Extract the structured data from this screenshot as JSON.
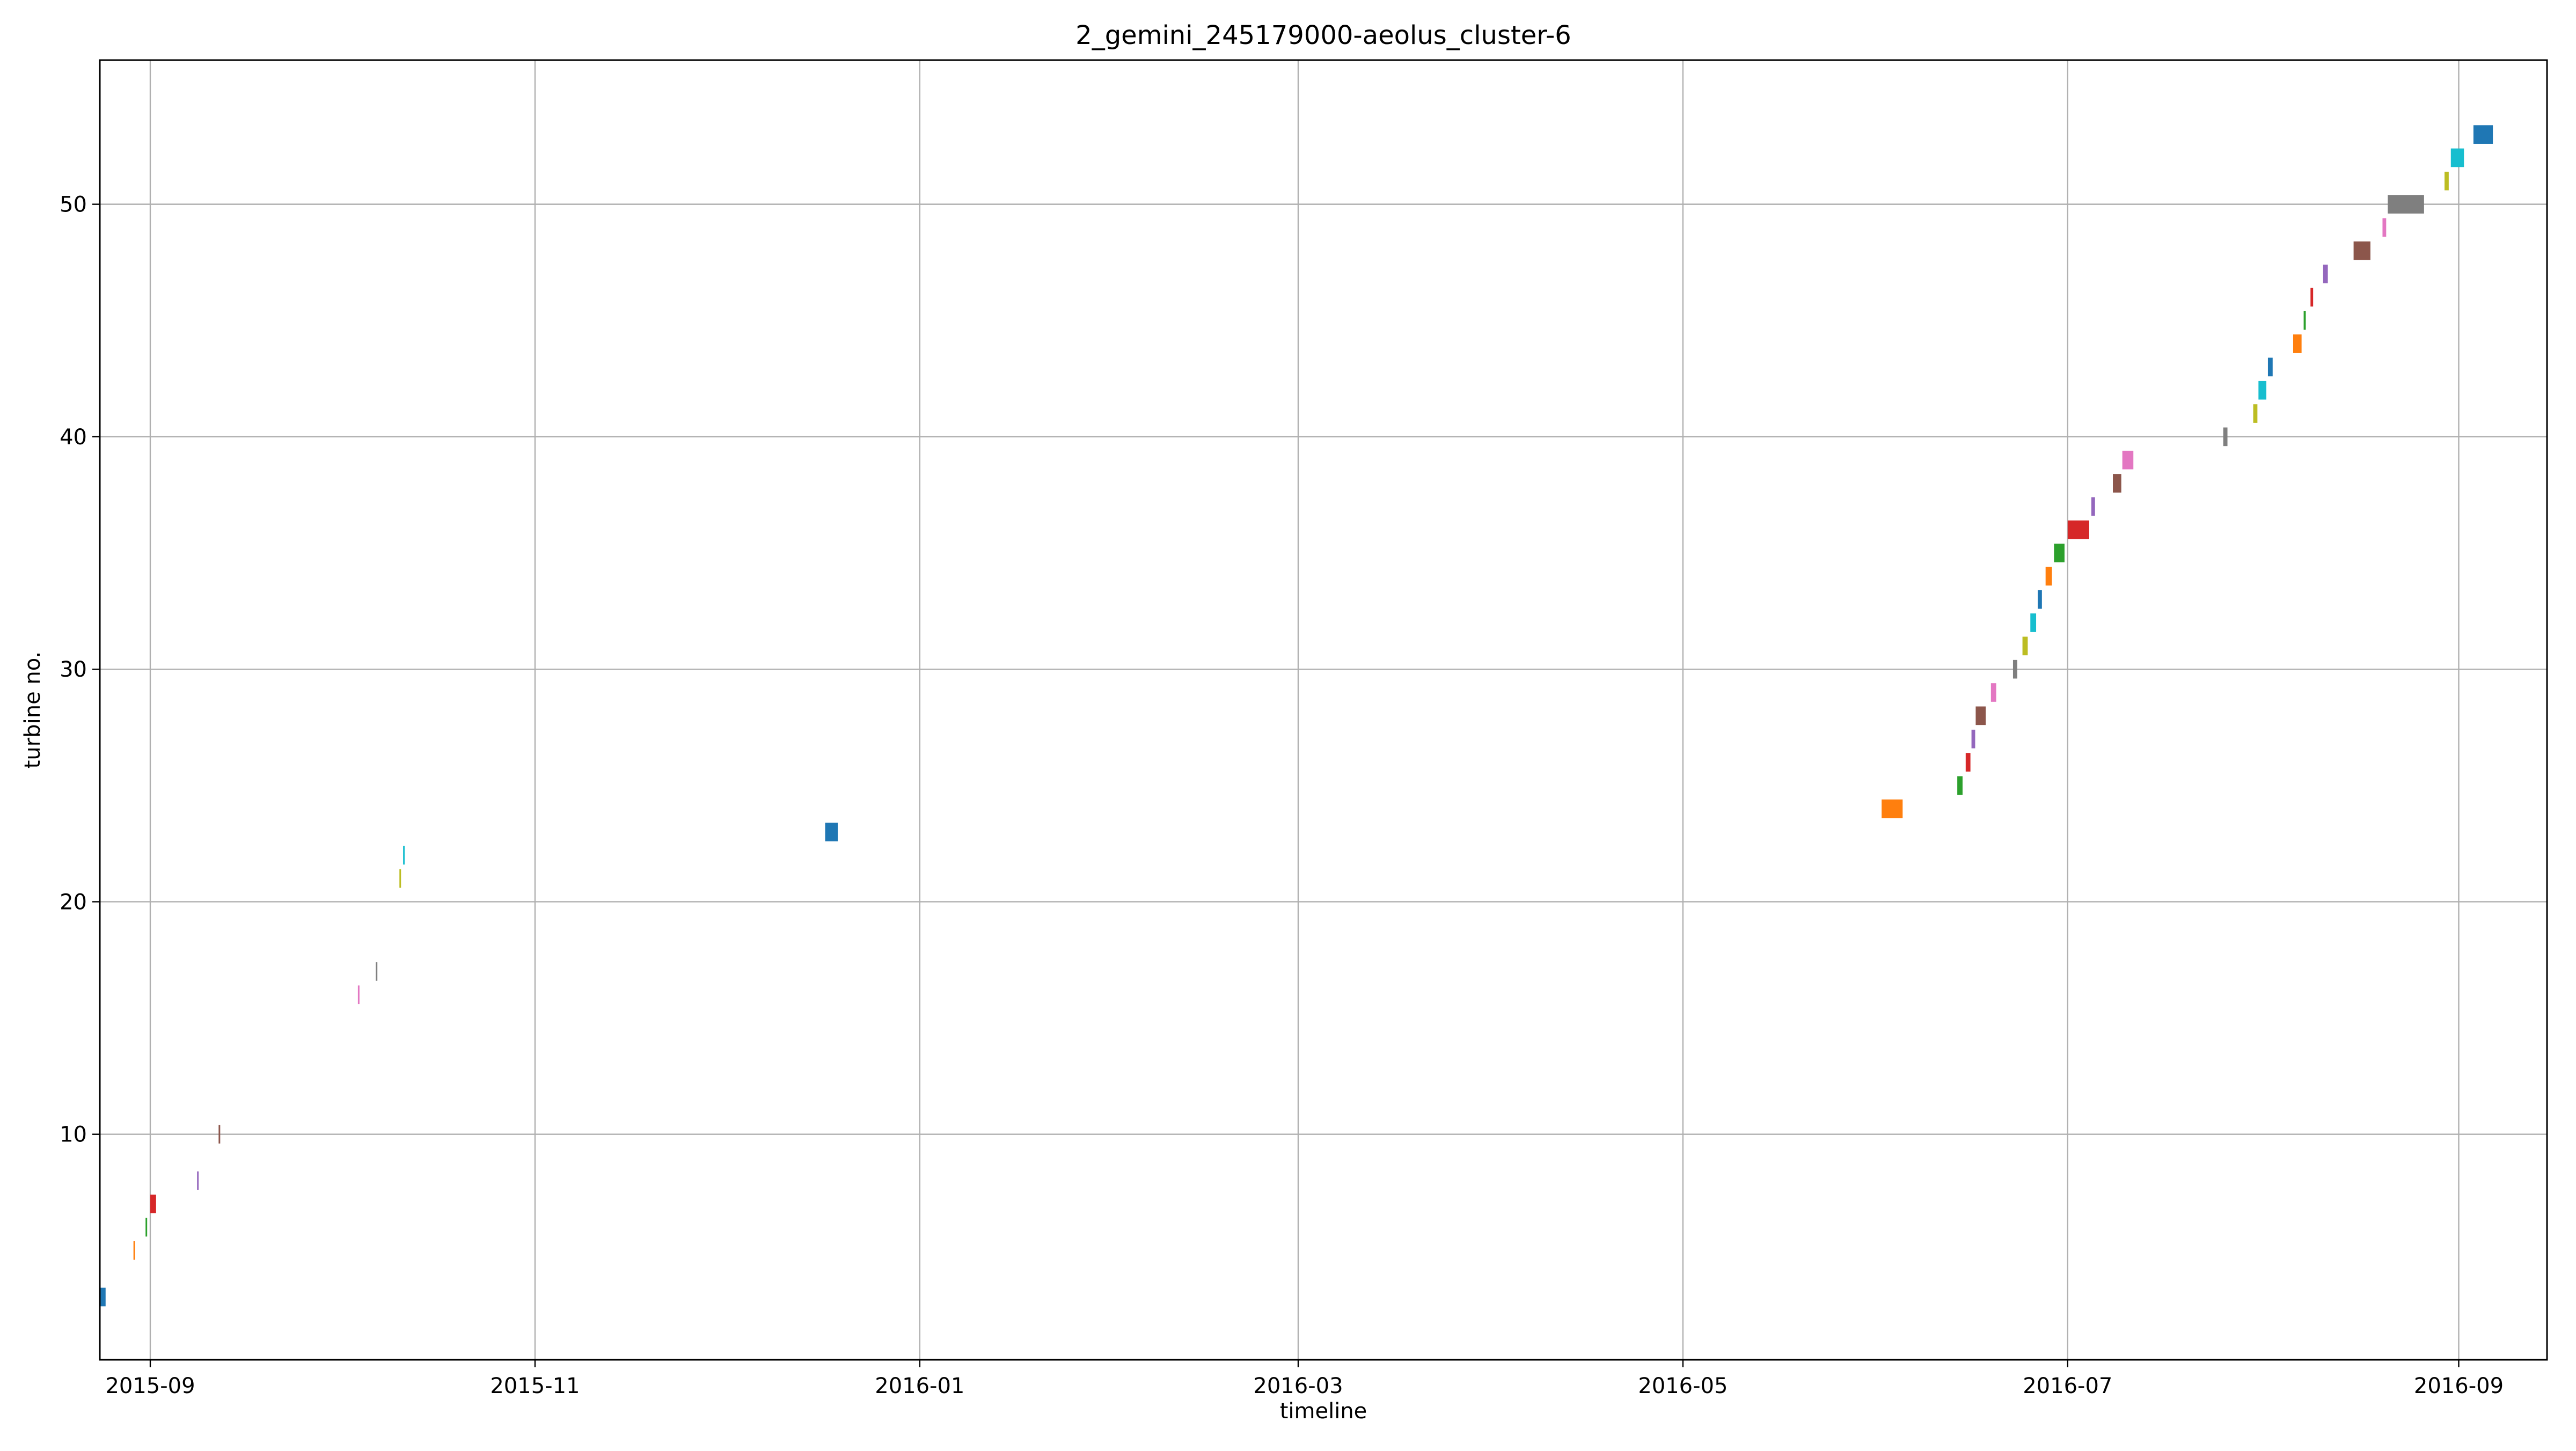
{
  "chart_data": {
    "type": "gantt",
    "title": "2_gemini_245179000-aeolus_cluster-6",
    "xlabel": "timeline",
    "ylabel": "turbine no.",
    "x_axis": {
      "scale": "time",
      "range": [
        "2015-08-24",
        "2016-09-15"
      ],
      "ticks": [
        "2015-09-01",
        "2015-11-01",
        "2016-01-01",
        "2016-03-01",
        "2016-05-01",
        "2016-07-01",
        "2016-09-01"
      ],
      "tick_labels": [
        "2015-09",
        "2015-11",
        "2016-01",
        "2016-03",
        "2016-05",
        "2016-07",
        "2016-09"
      ]
    },
    "y_axis": {
      "range": [
        0.3,
        56.2
      ],
      "ticks": [
        10,
        20,
        30,
        40,
        50
      ],
      "tick_labels": [
        "10",
        "20",
        "30",
        "40",
        "50"
      ]
    },
    "grid": true,
    "legend": "none",
    "colors": {
      "blue": "#1f77b4",
      "orange": "#ff7f0e",
      "green": "#2ca02c",
      "red": "#d62728",
      "purple": "#9467bd",
      "brown": "#8c564b",
      "pink": "#e377c2",
      "gray": "#7f7f7f",
      "olive": "#bcbd22",
      "cyan": "#17becf"
    },
    "bars": [
      {
        "turbine": 3,
        "start": "2015-08-24T00:00",
        "end": "2015-08-24T22:00",
        "color": "blue"
      },
      {
        "turbine": 5,
        "start": "2015-08-29T08:00",
        "end": "2015-08-29T14:00",
        "color": "orange"
      },
      {
        "turbine": 6,
        "start": "2015-08-31T06:00",
        "end": "2015-08-31T12:00",
        "color": "green"
      },
      {
        "turbine": 7,
        "start": "2015-09-01T00:00",
        "end": "2015-09-01T22:00",
        "color": "red"
      },
      {
        "turbine": 8,
        "start": "2015-09-08T10:00",
        "end": "2015-09-08T16:00",
        "color": "purple"
      },
      {
        "turbine": 10,
        "start": "2015-09-11T20:00",
        "end": "2015-09-12T02:00",
        "color": "brown"
      },
      {
        "turbine": 16,
        "start": "2015-10-03T22:00",
        "end": "2015-10-04T04:00",
        "color": "pink"
      },
      {
        "turbine": 17,
        "start": "2015-10-06T18:00",
        "end": "2015-10-07T00:00",
        "color": "gray"
      },
      {
        "turbine": 21,
        "start": "2015-10-10T12:00",
        "end": "2015-10-10T18:00",
        "color": "olive"
      },
      {
        "turbine": 22,
        "start": "2015-10-11T02:00",
        "end": "2015-10-11T08:00",
        "color": "cyan"
      },
      {
        "turbine": 23,
        "start": "2015-12-17T00:00",
        "end": "2015-12-19T00:00",
        "color": "blue"
      },
      {
        "turbine": 24,
        "start": "2016-06-01T12:00",
        "end": "2016-06-04T20:00",
        "color": "orange"
      },
      {
        "turbine": 25,
        "start": "2016-06-13T12:00",
        "end": "2016-06-14T08:00",
        "color": "green"
      },
      {
        "turbine": 26,
        "start": "2016-06-14T20:00",
        "end": "2016-06-15T14:00",
        "color": "red"
      },
      {
        "turbine": 27,
        "start": "2016-06-15T18:00",
        "end": "2016-06-16T08:00",
        "color": "purple"
      },
      {
        "turbine": 28,
        "start": "2016-06-16T10:00",
        "end": "2016-06-18T00:00",
        "color": "brown"
      },
      {
        "turbine": 29,
        "start": "2016-06-18T20:00",
        "end": "2016-06-19T16:00",
        "color": "pink"
      },
      {
        "turbine": 30,
        "start": "2016-06-22T08:00",
        "end": "2016-06-23T00:00",
        "color": "gray"
      },
      {
        "turbine": 31,
        "start": "2016-06-23T20:00",
        "end": "2016-06-24T16:00",
        "color": "olive"
      },
      {
        "turbine": 32,
        "start": "2016-06-25T02:00",
        "end": "2016-06-26T00:00",
        "color": "cyan"
      },
      {
        "turbine": 33,
        "start": "2016-06-26T06:00",
        "end": "2016-06-26T22:00",
        "color": "blue"
      },
      {
        "turbine": 34,
        "start": "2016-06-27T12:00",
        "end": "2016-06-28T12:00",
        "color": "orange"
      },
      {
        "turbine": 35,
        "start": "2016-06-28T20:00",
        "end": "2016-06-30T12:00",
        "color": "green"
      },
      {
        "turbine": 36,
        "start": "2016-07-01T00:00",
        "end": "2016-07-04T10:00",
        "color": "red"
      },
      {
        "turbine": 37,
        "start": "2016-07-04T18:00",
        "end": "2016-07-05T08:00",
        "color": "purple"
      },
      {
        "turbine": 38,
        "start": "2016-07-08T04:00",
        "end": "2016-07-09T12:00",
        "color": "brown"
      },
      {
        "turbine": 39,
        "start": "2016-07-09T16:00",
        "end": "2016-07-11T10:00",
        "color": "pink"
      },
      {
        "turbine": 40,
        "start": "2016-07-25T16:00",
        "end": "2016-07-26T08:00",
        "color": "gray"
      },
      {
        "turbine": 41,
        "start": "2016-07-30T10:00",
        "end": "2016-07-31T02:00",
        "color": "olive"
      },
      {
        "turbine": 42,
        "start": "2016-07-31T06:00",
        "end": "2016-08-01T12:00",
        "color": "cyan"
      },
      {
        "turbine": 43,
        "start": "2016-08-01T18:00",
        "end": "2016-08-02T12:00",
        "color": "blue"
      },
      {
        "turbine": 44,
        "start": "2016-08-05T18:00",
        "end": "2016-08-07T02:00",
        "color": "orange"
      },
      {
        "turbine": 45,
        "start": "2016-08-07T10:00",
        "end": "2016-08-07T18:00",
        "color": "green"
      },
      {
        "turbine": 46,
        "start": "2016-08-08T12:00",
        "end": "2016-08-08T22:00",
        "color": "red"
      },
      {
        "turbine": 47,
        "start": "2016-08-10T12:00",
        "end": "2016-08-11T06:00",
        "color": "purple"
      },
      {
        "turbine": 48,
        "start": "2016-08-15T08:00",
        "end": "2016-08-18T00:00",
        "color": "brown"
      },
      {
        "turbine": 49,
        "start": "2016-08-19T22:00",
        "end": "2016-08-20T12:00",
        "color": "pink"
      },
      {
        "turbine": 50,
        "start": "2016-08-20T18:00",
        "end": "2016-08-26T12:00",
        "color": "gray"
      },
      {
        "turbine": 51,
        "start": "2016-08-29T18:00",
        "end": "2016-08-30T10:00",
        "color": "olive"
      },
      {
        "turbine": 52,
        "start": "2016-08-30T18:00",
        "end": "2016-09-01T20:00",
        "color": "cyan"
      },
      {
        "turbine": 53,
        "start": "2016-09-03T08:00",
        "end": "2016-09-06T10:00",
        "color": "blue"
      }
    ]
  }
}
